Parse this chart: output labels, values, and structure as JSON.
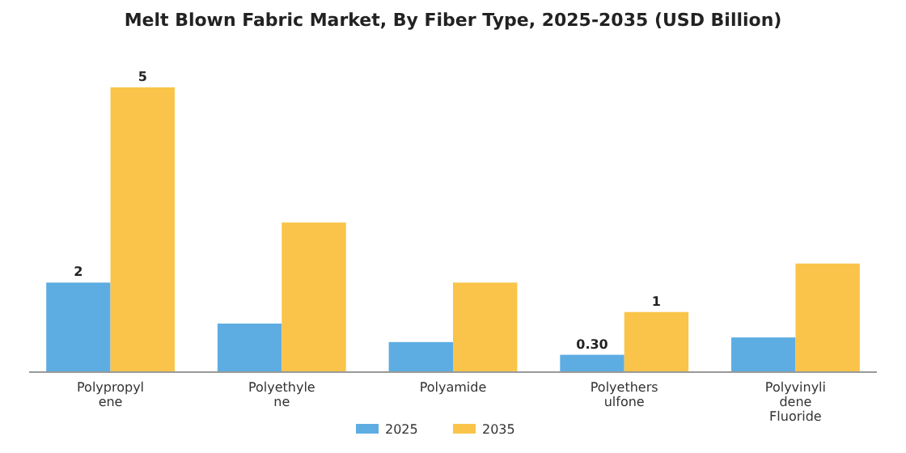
{
  "chart_data": {
    "type": "bar",
    "title": "Melt Blown Fabric Market, By Fiber Type, 2025-2035 (USD Billion)",
    "categories": [
      "Polypropylene",
      "Polyethylene",
      "Polyamide",
      "Polyethersulfone",
      "Polyvinylidene Fluoride"
    ],
    "series": [
      {
        "name": "2025",
        "color": "#5dade2",
        "values": [
          1.55,
          0.84,
          0.52,
          0.3,
          0.6
        ],
        "value_labels": [
          "2",
          null,
          null,
          "0.30",
          null
        ]
      },
      {
        "name": "2035",
        "color": "#f9c449",
        "values": [
          4.93,
          2.59,
          1.55,
          1.04,
          1.88
        ],
        "value_labels": [
          "5",
          null,
          null,
          "1",
          null
        ]
      }
    ],
    "legend": "bottom"
  }
}
